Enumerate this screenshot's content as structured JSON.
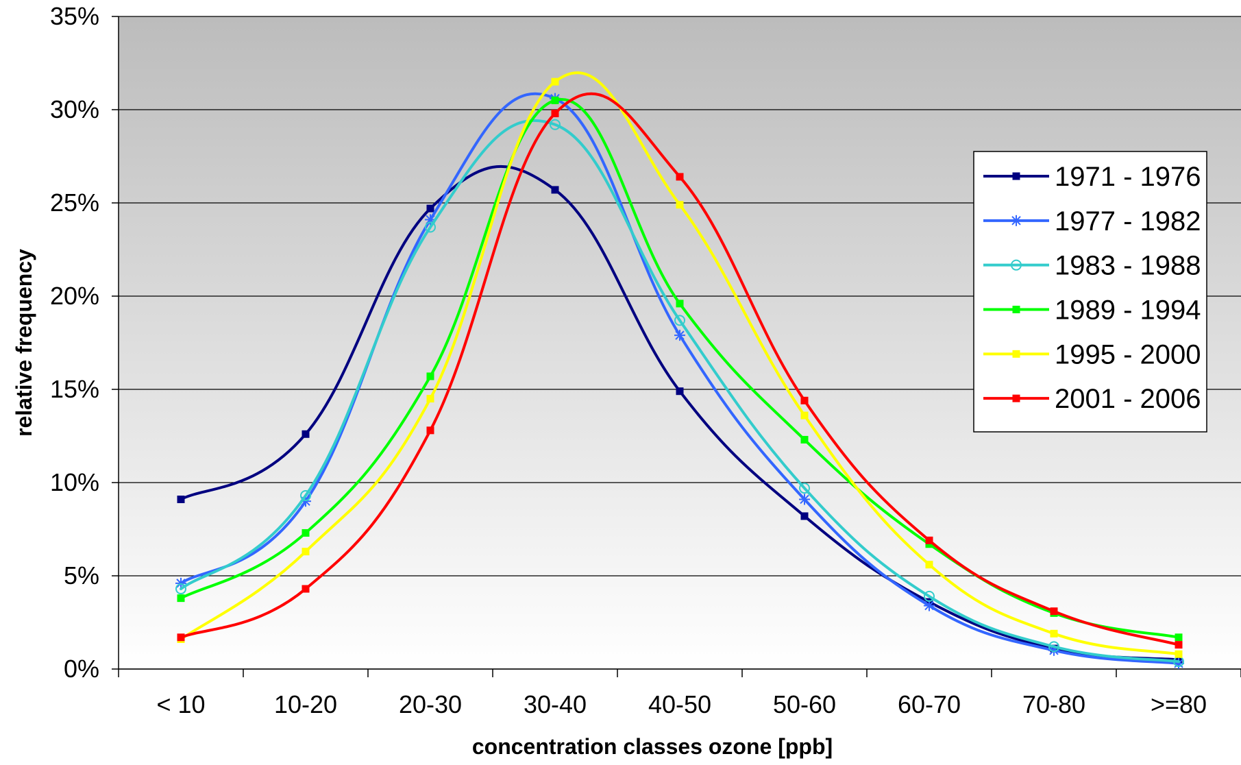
{
  "chart_data": {
    "type": "line",
    "title": "",
    "xlabel": "concentration classes ozone [ppb]",
    "ylabel": "relative frequency",
    "categories": [
      "< 10",
      "10-20",
      "20-30",
      "30-40",
      "40-50",
      "50-60",
      "60-70",
      "70-80",
      ">=80"
    ],
    "ylim": [
      0,
      35
    ],
    "y_ticks": [
      0,
      5,
      10,
      15,
      20,
      25,
      30,
      35
    ],
    "y_tick_labels": [
      "0%",
      "5%",
      "10%",
      "15%",
      "20%",
      "25%",
      "30%",
      "35%"
    ],
    "grid": "horizontal",
    "legend_position": "right",
    "plot_background": "gradient gray (top) to white (bottom)",
    "series": [
      {
        "name": "1971 - 1976",
        "color": "#000080",
        "marker": "square",
        "values": [
          9.1,
          12.6,
          24.7,
          25.7,
          14.9,
          8.2,
          3.6,
          1.1,
          0.5
        ]
      },
      {
        "name": "1977 - 1982",
        "color": "#3366FF",
        "marker": "star",
        "values": [
          4.6,
          9.0,
          24.1,
          30.6,
          17.9,
          9.1,
          3.4,
          1.0,
          0.3
        ]
      },
      {
        "name": "1983 - 1988",
        "color": "#33CCCC",
        "marker": "circle",
        "values": [
          4.3,
          9.3,
          23.7,
          29.2,
          18.7,
          9.7,
          3.9,
          1.2,
          0.4
        ]
      },
      {
        "name": "1989 - 1994",
        "color": "#00FF00",
        "marker": "square",
        "values": [
          3.8,
          7.3,
          15.7,
          30.5,
          19.6,
          12.3,
          6.7,
          3.0,
          1.7
        ]
      },
      {
        "name": "1995 - 2000",
        "color": "#FFFF00",
        "marker": "square",
        "values": [
          1.6,
          6.3,
          14.5,
          31.5,
          24.9,
          13.6,
          5.6,
          1.9,
          0.8
        ]
      },
      {
        "name": "2001 - 2006",
        "color": "#FF0000",
        "marker": "square",
        "values": [
          1.7,
          4.3,
          12.8,
          29.8,
          26.4,
          14.4,
          6.9,
          3.1,
          1.3
        ]
      }
    ]
  }
}
